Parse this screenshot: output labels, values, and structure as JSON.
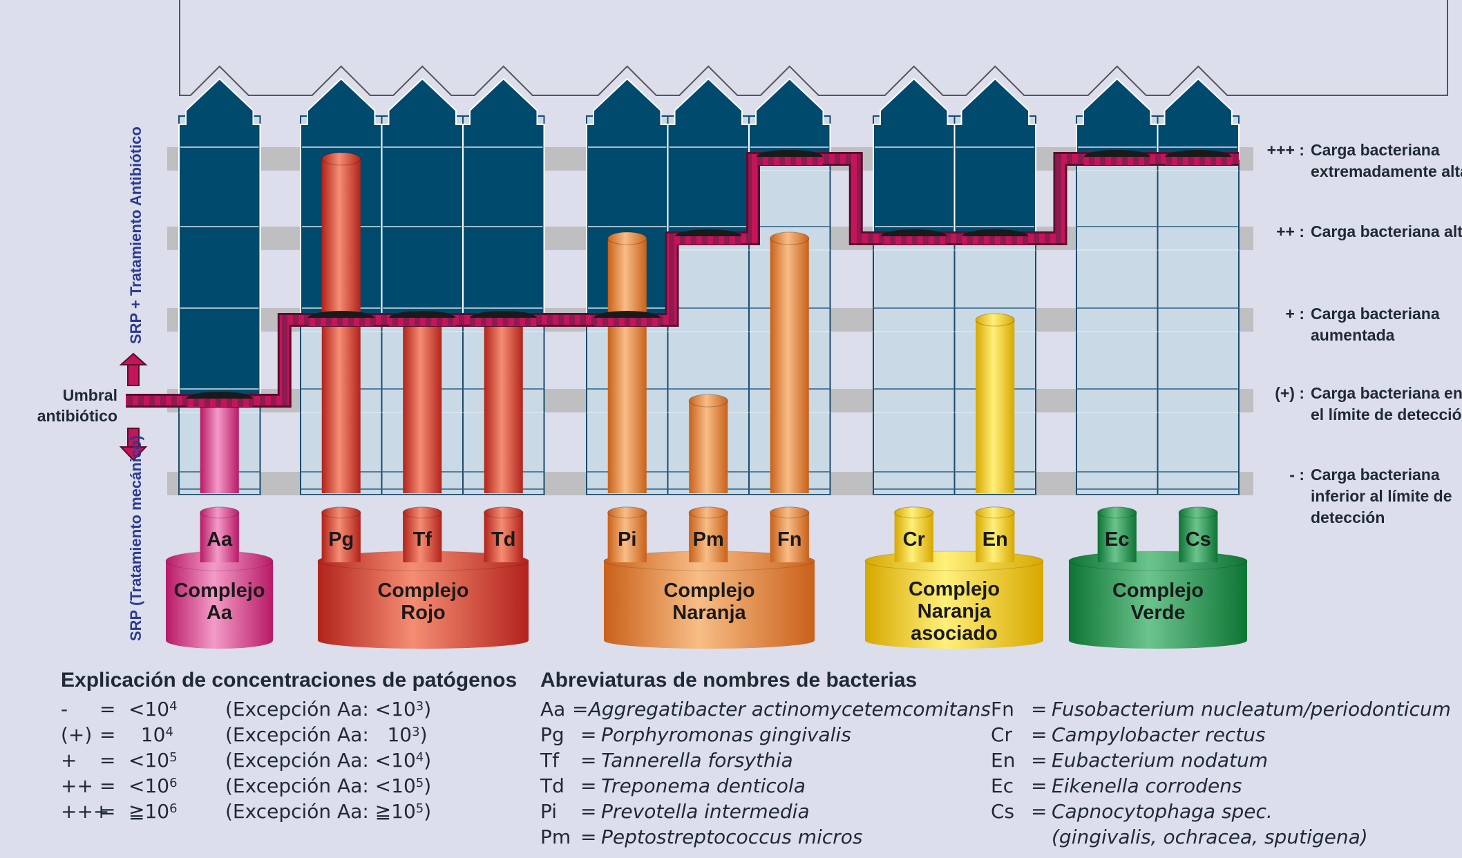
{
  "threshold_label": [
    "Umbral",
    "antibiótico"
  ],
  "axis_up": "SRP + Tratamiento Antibiótico",
  "axis_down": "SRP (Tratamiento mecánico)",
  "levels": [
    {
      "symbol": "+++ :",
      "text": [
        "Carga bacteriana",
        "extremadamente alta"
      ]
    },
    {
      "symbol": "++ :",
      "text": [
        "Carga bacteriana alta"
      ]
    },
    {
      "symbol": "+ :",
      "text": [
        "Carga bacteriana",
        "aumentada"
      ]
    },
    {
      "symbol": "(+) :",
      "text": [
        "Carga bacteriana en",
        "el límite de detección"
      ]
    },
    {
      "symbol": "- :",
      "text": [
        "Carga bacteriana",
        "inferior al límite de",
        "detección"
      ]
    }
  ],
  "complexes": [
    {
      "name": [
        "Complejo",
        "Aa"
      ],
      "color": "#d63384",
      "bacteria": [
        {
          "abbr": "Aa",
          "level": "(+)"
        }
      ]
    },
    {
      "name": [
        "Complejo",
        "Rojo"
      ],
      "color": "#d8352a",
      "bacteria": [
        {
          "abbr": "Pg",
          "level": "+++"
        },
        {
          "abbr": "Tf",
          "level": "+"
        },
        {
          "abbr": "Td",
          "level": "+"
        }
      ]
    },
    {
      "name": [
        "Complejo",
        "Naranja"
      ],
      "color": "#e97d2a",
      "bacteria": [
        {
          "abbr": "Pi",
          "level": "++"
        },
        {
          "abbr": "Pm",
          "level": "(+)"
        },
        {
          "abbr": "Fn",
          "level": "++"
        }
      ]
    },
    {
      "name": [
        "Complejo",
        "Naranja",
        "asociado"
      ],
      "color": "#f2c81c",
      "bacteria": [
        {
          "abbr": "Cr",
          "level": "-"
        },
        {
          "abbr": "En",
          "level": "+"
        }
      ]
    },
    {
      "name": [
        "Complejo",
        "Verde"
      ],
      "color": "#1f9a4a",
      "bacteria": [
        {
          "abbr": "Ec",
          "level": "-"
        },
        {
          "abbr": "Cs",
          "level": "-"
        }
      ]
    }
  ],
  "concentrations": {
    "title": "Explicación de concentraciones de patógenos",
    "rows": [
      {
        "sym": "-",
        "eq": "=",
        "val_pre": "<10",
        "val_exp": "4",
        "exc_pre": "(Excepción Aa: <10",
        "exc_exp": "3",
        "exc_post": ")"
      },
      {
        "sym": "(+)",
        "eq": "=",
        "val_pre": "  10",
        "val_exp": "4",
        "exc_pre": "(Excepción Aa:   10",
        "exc_exp": "3",
        "exc_post": ")"
      },
      {
        "sym": "+",
        "eq": "=",
        "val_pre": "<10",
        "val_exp": "5",
        "exc_pre": "(Excepción Aa: <10",
        "exc_exp": "4",
        "exc_post": ")"
      },
      {
        "sym": "++",
        "eq": "=",
        "val_pre": "<10",
        "val_exp": "6",
        "exc_pre": "(Excepción Aa: <10",
        "exc_exp": "5",
        "exc_post": ")"
      },
      {
        "sym": "+++",
        "eq": "=",
        "val_pre": "≧10",
        "val_exp": "6",
        "exc_pre": "(Excepción Aa: ≧10",
        "exc_exp": "5",
        "exc_post": ")"
      }
    ]
  },
  "abbreviations": {
    "title": "Abreviaturas de nombres de bacterias",
    "left": [
      {
        "abbr": "Aa",
        "eq": "=",
        "name": "Aggregatibacter actinomycetemcomitans"
      },
      {
        "abbr": "Pg",
        "eq": "=",
        "name": "Porphyromonas gingivalis"
      },
      {
        "abbr": "Tf",
        "eq": "=",
        "name": "Tannerella forsythia"
      },
      {
        "abbr": "Td",
        "eq": "=",
        "name": "Treponema denticola"
      },
      {
        "abbr": "Pi",
        "eq": "=",
        "name": "Prevotella intermedia"
      },
      {
        "abbr": "Pm",
        "eq": "=",
        "name": "Peptostreptococcus micros"
      }
    ],
    "right": [
      {
        "abbr": "Fn",
        "eq": "=",
        "name": "Fusobacterium nucleatum/periodonticum"
      },
      {
        "abbr": "Cr",
        "eq": "=",
        "name": "Campylobacter rectus"
      },
      {
        "abbr": "En",
        "eq": "=",
        "name": "Eubacterium nodatum"
      },
      {
        "abbr": "Ec",
        "eq": "=",
        "name": "Eikenella corrodens"
      },
      {
        "abbr": "Cs",
        "eq": "=",
        "name": "Capnocytophaga spec."
      },
      {
        "abbr": "",
        "eq": "",
        "name": "(gingivalis, ochracea, sputigena)"
      }
    ]
  },
  "colors": {
    "tooth_dark": "#004a6e",
    "tooth_light": "#c9d9e6",
    "band": "#bfbfc2",
    "line": "#c4145a",
    "pink": "#d63384",
    "red": "#d8352a",
    "orange": "#e97d2a",
    "yellow": "#f2c81c",
    "green": "#1f9a4a",
    "background": "#dcdeeb"
  }
}
